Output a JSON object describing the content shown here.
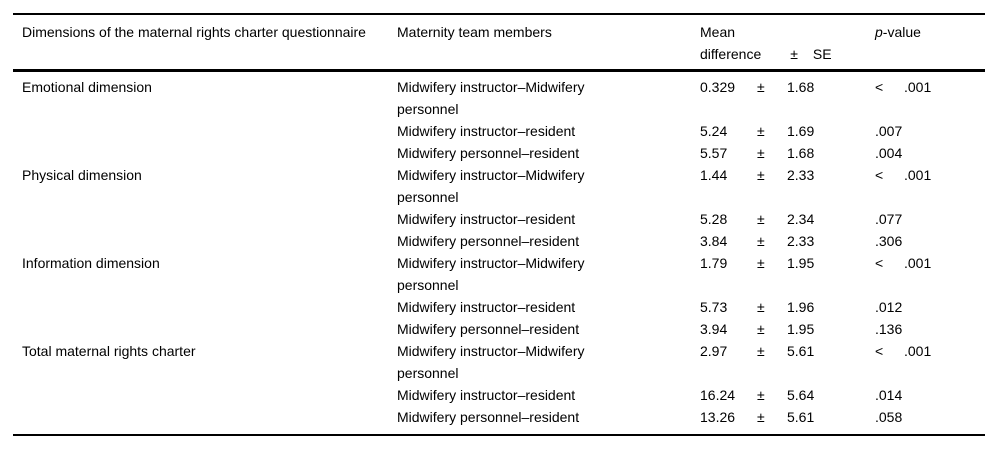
{
  "colors": {
    "background": "#ffffff",
    "text": "#000000",
    "rule": "#000000"
  },
  "table": {
    "headers": {
      "col1": "Dimensions of the maternal rights charter questionnaire",
      "col2": "Maternity team members",
      "col3_line1": "Mean",
      "col3_line2": "difference",
      "col3_pm": "±",
      "col3_se": "SE",
      "col4_italic": "p",
      "col4_rest": "-value"
    },
    "rows": [
      {
        "dimension": "Emotional dimension",
        "team": "Midwifery instructor–Midwifery personnel",
        "mean": "0.329",
        "pm": "±",
        "se": "1.68",
        "p_prefix": "<",
        "p": ".001"
      },
      {
        "dimension": "",
        "team": "Midwifery instructor–resident",
        "mean": "5.24",
        "pm": "±",
        "se": "1.69",
        "p_prefix": "",
        "p": ".007"
      },
      {
        "dimension": "",
        "team": "Midwifery personnel–resident",
        "mean": "5.57",
        "pm": "±",
        "se": "1.68",
        "p_prefix": "",
        "p": ".004"
      },
      {
        "dimension": "Physical dimension",
        "team": "Midwifery instructor–Midwifery personnel",
        "mean": "1.44",
        "pm": "±",
        "se": "2.33",
        "p_prefix": "<",
        "p": ".001"
      },
      {
        "dimension": "",
        "team": "Midwifery instructor–resident",
        "mean": "5.28",
        "pm": "±",
        "se": "2.34",
        "p_prefix": "",
        "p": ".077"
      },
      {
        "dimension": "",
        "team": "Midwifery personnel–resident",
        "mean": "3.84",
        "pm": "±",
        "se": "2.33",
        "p_prefix": "",
        "p": ".306"
      },
      {
        "dimension": "Information dimension",
        "team": "Midwifery instructor–Midwifery personnel",
        "mean": "1.79",
        "pm": "±",
        "se": "1.95",
        "p_prefix": "<",
        "p": ".001"
      },
      {
        "dimension": "",
        "team": "Midwifery instructor–resident",
        "mean": "5.73",
        "pm": "±",
        "se": "1.96",
        "p_prefix": "",
        "p": ".012"
      },
      {
        "dimension": "",
        "team": "Midwifery personnel–resident",
        "mean": "3.94",
        "pm": "±",
        "se": "1.95",
        "p_prefix": "",
        "p": ".136"
      },
      {
        "dimension": "Total maternal rights charter",
        "team": "Midwifery instructor–Midwifery personnel",
        "mean": "2.97",
        "pm": "±",
        "se": "5.61",
        "p_prefix": "<",
        "p": ".001"
      },
      {
        "dimension": "",
        "team": "Midwifery instructor–resident",
        "mean": "16.24",
        "pm": "±",
        "se": "5.64",
        "p_prefix": "",
        "p": ".014"
      },
      {
        "dimension": "",
        "team": "Midwifery personnel–resident",
        "mean": "13.26",
        "pm": "±",
        "se": "5.61",
        "p_prefix": "",
        "p": ".058"
      }
    ]
  }
}
